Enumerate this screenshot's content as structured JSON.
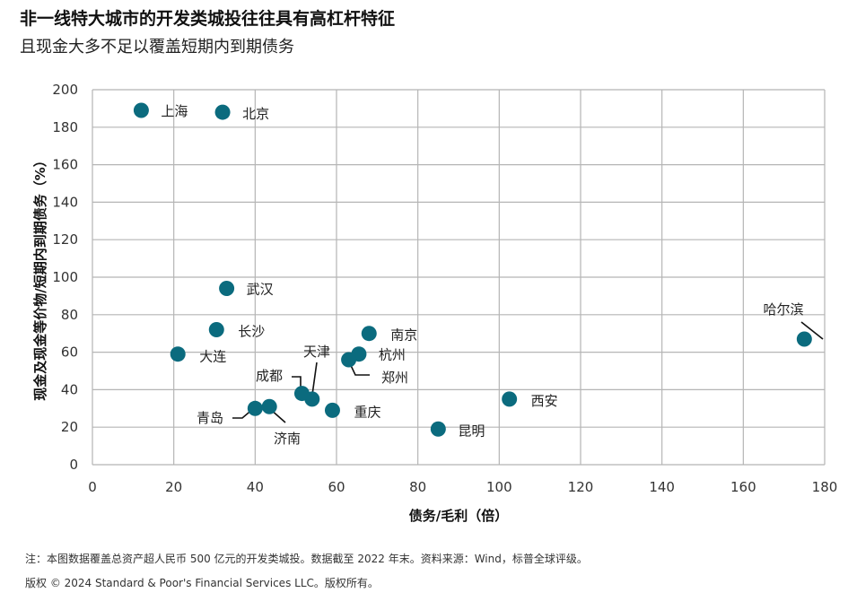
{
  "header": {
    "title": "非一线特大城市的开发类城投往往具有高杠杆特征",
    "subtitle": "且现金大多不足以覆盖短期内到期债务"
  },
  "footer": {
    "note": "注：本图数据覆盖总资产超人民币 500 亿元的开发类城投。数据截至 2022 年末。资料来源：Wind，标普全球评级。",
    "copyright": "版权 © 2024 Standard & Poor's Financial Services LLC。版权所有。"
  },
  "chart_data": {
    "type": "scatter",
    "title": "非一线特大城市的开发类城投往往具有高杠杆特征",
    "subtitle": "且现金大多不足以覆盖短期内到期债务",
    "xlabel": "债务/毛利（倍）",
    "ylabel": "现金及现金等价物/短期内到期债务（%）",
    "xlim": [
      0,
      180
    ],
    "ylim": [
      0,
      200
    ],
    "xticks": [
      0,
      20,
      40,
      60,
      80,
      100,
      120,
      140,
      160,
      180
    ],
    "yticks": [
      0,
      20,
      40,
      60,
      80,
      100,
      120,
      140,
      160,
      180,
      200
    ],
    "grid": true,
    "marker_color": "#0b6b7e",
    "points": [
      {
        "label": "上海",
        "x": 12,
        "y": 189
      },
      {
        "label": "北京",
        "x": 32,
        "y": 188
      },
      {
        "label": "武汉",
        "x": 33,
        "y": 94
      },
      {
        "label": "长沙",
        "x": 30.5,
        "y": 72
      },
      {
        "label": "大连",
        "x": 21,
        "y": 59
      },
      {
        "label": "南京",
        "x": 68,
        "y": 70
      },
      {
        "label": "杭州",
        "x": 65.5,
        "y": 59
      },
      {
        "label": "郑州",
        "x": 63,
        "y": 56
      },
      {
        "label": "天津",
        "x": 54,
        "y": 35
      },
      {
        "label": "成都",
        "x": 51.5,
        "y": 38
      },
      {
        "label": "重庆",
        "x": 59,
        "y": 29
      },
      {
        "label": "青岛",
        "x": 40,
        "y": 30
      },
      {
        "label": "济南",
        "x": 43.5,
        "y": 31
      },
      {
        "label": "昆明",
        "x": 85,
        "y": 19
      },
      {
        "label": "西安",
        "x": 102.5,
        "y": 35
      },
      {
        "label": "哈尔滨",
        "x": 175,
        "y": 67
      }
    ]
  }
}
